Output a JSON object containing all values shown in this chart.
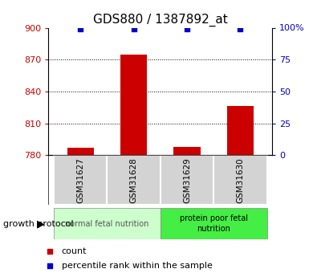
{
  "title": "GDS880 / 1387892_at",
  "samples": [
    "GSM31627",
    "GSM31628",
    "GSM31629",
    "GSM31630"
  ],
  "bar_values": [
    787,
    875,
    788,
    826
  ],
  "percentile_values": [
    99,
    99,
    99,
    99
  ],
  "ylim_left": [
    780,
    900
  ],
  "ylim_right": [
    0,
    100
  ],
  "yticks_left": [
    780,
    810,
    840,
    870,
    900
  ],
  "yticks_right": [
    0,
    25,
    50,
    75,
    100
  ],
  "ytick_labels_right": [
    "0",
    "25",
    "50",
    "75",
    "100%"
  ],
  "grid_lines": [
    810,
    840,
    870
  ],
  "bar_color": "#cc0000",
  "percentile_color": "#0000cc",
  "tick_color_left": "#cc0000",
  "tick_color_right": "#0000cc",
  "sample_box_color": "#d3d3d3",
  "group1_color": "#ccffcc",
  "group2_color": "#44ee44",
  "group1_label": "normal fetal nutrition",
  "group2_label": "protein poor fetal\nnutrition",
  "group_label": "growth protocol",
  "legend_count_label": "count",
  "legend_pct_label": "percentile rank within the sample",
  "bar_width": 0.5
}
